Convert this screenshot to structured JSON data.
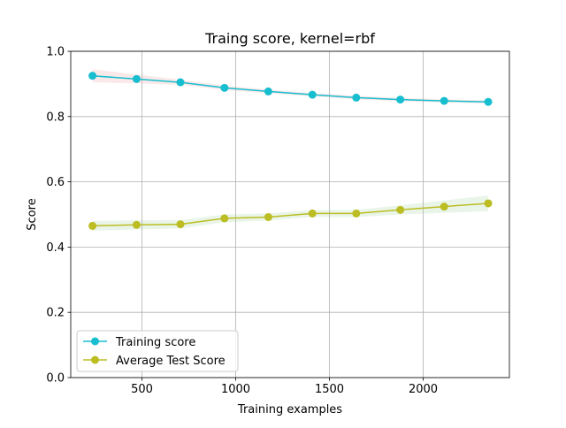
{
  "chart_data": {
    "type": "line",
    "title": "Traing score, kernel=rbf",
    "xlabel": "Training examples",
    "ylabel": "Score",
    "xlim": [
      120,
      2460
    ],
    "ylim": [
      0.0,
      1.0
    ],
    "x_ticks": [
      500,
      1000,
      1500,
      2000
    ],
    "x_tick_labels": [
      "500",
      "1000",
      "1500",
      "2000"
    ],
    "y_ticks": [
      0.0,
      0.2,
      0.4,
      0.6,
      0.8,
      1.0
    ],
    "y_tick_labels": [
      "0.0",
      "0.2",
      "0.4",
      "0.6",
      "0.8",
      "1.0"
    ],
    "grid": true,
    "legend_position": "lower-left",
    "x": [
      236,
      471,
      705,
      940,
      1174,
      1409,
      1643,
      1878,
      2112,
      2347
    ],
    "series": [
      {
        "name": "Training score",
        "color": "#17becf",
        "band_color": "#d62728",
        "values": [
          0.925,
          0.915,
          0.905,
          0.888,
          0.877,
          0.867,
          0.858,
          0.852,
          0.848,
          0.845
        ],
        "band_lower": [
          0.905,
          0.902,
          0.897,
          0.881,
          0.871,
          0.862,
          0.852,
          0.847,
          0.843,
          0.84
        ],
        "band_upper": [
          0.945,
          0.929,
          0.913,
          0.895,
          0.883,
          0.872,
          0.864,
          0.857,
          0.853,
          0.85
        ]
      },
      {
        "name": "Average Test Score",
        "color": "#bcbd22",
        "band_color": "#2ca02c",
        "values": [
          0.465,
          0.468,
          0.47,
          0.488,
          0.492,
          0.503,
          0.503,
          0.514,
          0.524,
          0.534
        ],
        "band_lower": [
          0.45,
          0.454,
          0.457,
          0.476,
          0.481,
          0.493,
          0.492,
          0.5,
          0.505,
          0.51
        ],
        "band_upper": [
          0.48,
          0.482,
          0.483,
          0.5,
          0.503,
          0.513,
          0.514,
          0.528,
          0.543,
          0.558
        ]
      }
    ]
  }
}
